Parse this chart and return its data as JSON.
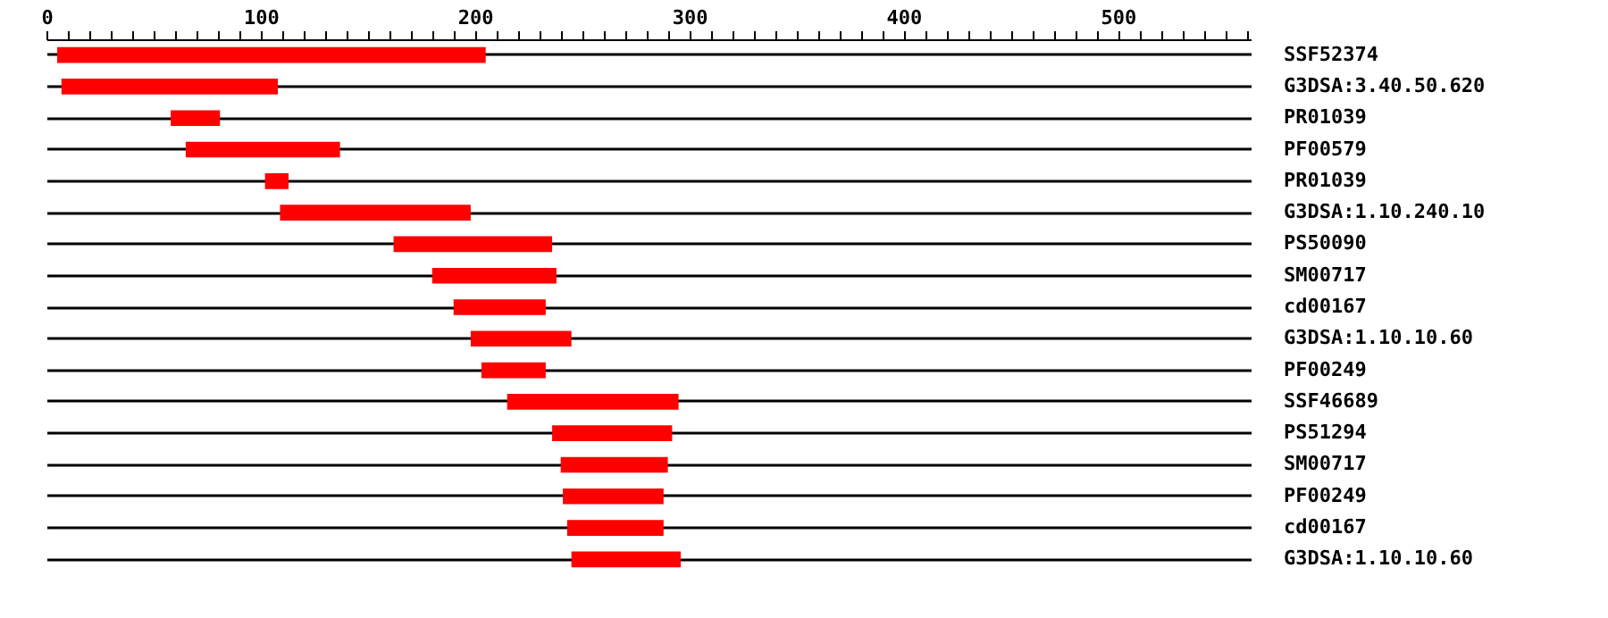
{
  "chart_data": {
    "type": "bar",
    "orientation": "horizontal",
    "categories": [
      "SSF52374",
      "G3DSA:3.40.50.620",
      "PR01039",
      "PF00579",
      "PR01039",
      "G3DSA:1.10.240.10",
      "PS50090",
      "SM00717",
      "cd00167",
      "G3DSA:1.10.10.60",
      "PF00249",
      "SSF46689",
      "PS51294",
      "SM00717",
      "PF00249",
      "cd00167",
      "G3DSA:1.10.10.60"
    ],
    "base": [
      5,
      7,
      58,
      65,
      102,
      109,
      162,
      180,
      190,
      198,
      203,
      215,
      236,
      240,
      241,
      243,
      245
    ],
    "values": [
      200,
      101,
      23,
      72,
      11,
      89,
      74,
      58,
      43,
      47,
      30,
      80,
      56,
      50,
      47,
      45,
      51
    ],
    "color": "#ff0000",
    "xlim": [
      0,
      562
    ],
    "xticks": [
      0,
      {
        "value": 10,
        "label": null
      },
      {
        "value": 20,
        "label": null
      },
      {
        "value": 30,
        "label": null
      },
      {
        "value": 40,
        "label": null
      },
      {
        "value": 50,
        "label": null
      },
      {
        "value": 60,
        "label": null
      },
      {
        "value": 70,
        "label": null
      },
      {
        "value": 80,
        "label": null
      },
      {
        "value": 90,
        "label": null
      },
      100,
      {
        "value": 110,
        "label": null
      },
      {
        "value": 120,
        "label": null
      },
      {
        "value": 130,
        "label": null
      },
      {
        "value": 140,
        "label": null
      },
      {
        "value": 150,
        "label": null
      },
      {
        "value": 160,
        "label": null
      },
      {
        "value": 170,
        "label": null
      },
      {
        "value": 180,
        "label": null
      },
      {
        "value": 190,
        "label": null
      },
      200,
      {
        "value": 210,
        "label": null
      },
      {
        "value": 220,
        "label": null
      },
      {
        "value": 230,
        "label": null
      },
      {
        "value": 240,
        "label": null
      },
      {
        "value": 250,
        "label": null
      },
      {
        "value": 260,
        "label": null
      },
      {
        "value": 270,
        "label": null
      },
      {
        "value": 280,
        "label": null
      },
      {
        "value": 290,
        "label": null
      },
      300,
      {
        "value": 310,
        "label": null
      },
      {
        "value": 320,
        "label": null
      },
      {
        "value": 330,
        "label": null
      },
      {
        "value": 340,
        "label": null
      },
      {
        "value": 350,
        "label": null
      },
      {
        "value": 360,
        "label": null
      },
      {
        "value": 370,
        "label": null
      },
      {
        "value": 380,
        "label": null
      },
      {
        "value": 390,
        "label": null
      },
      400,
      {
        "value": 410,
        "label": null
      },
      {
        "value": 420,
        "label": null
      },
      {
        "value": 430,
        "label": null
      },
      {
        "value": 440,
        "label": null
      },
      {
        "value": 450,
        "label": null
      },
      {
        "value": 460,
        "label": null
      },
      {
        "value": 470,
        "label": null
      },
      {
        "value": 480,
        "label": null
      },
      {
        "value": 490,
        "label": null
      },
      500,
      {
        "value": 510,
        "label": null
      },
      {
        "value": 520,
        "label": null
      },
      {
        "value": 530,
        "label": null
      },
      {
        "value": 540,
        "label": null
      },
      {
        "value": 550,
        "label": null
      },
      {
        "value": 560,
        "label": null
      }
    ],
    "grid": "y",
    "legend": false
  }
}
